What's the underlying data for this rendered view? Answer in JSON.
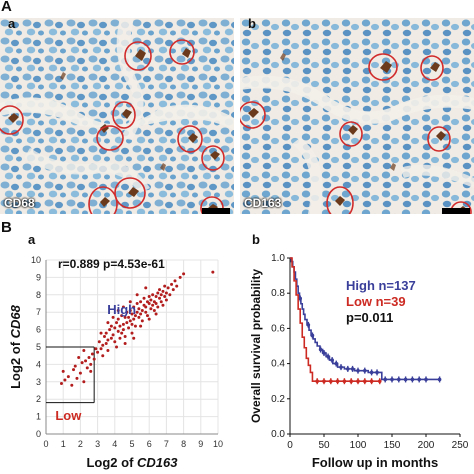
{
  "panel_A": {
    "label": "A",
    "sub_a": {
      "label": "a",
      "stain": "CD68"
    },
    "sub_b": {
      "label": "b",
      "stain": "CD163"
    }
  },
  "panel_B": {
    "label": "B",
    "sub_a": {
      "label": "a"
    },
    "sub_b": {
      "label": "b"
    }
  },
  "colors": {
    "high": "#3a3f9a",
    "low": "#cc2a22",
    "circle": "#d12b2b",
    "scatter": "#b31d1d"
  },
  "chart_data": [
    {
      "type": "scatter",
      "title": "r=0.889 p=4.53e-61",
      "xlabel_prefix": "Log2 of ",
      "xlabel_gene": "CD163",
      "ylabel_prefix": "Log2 of ",
      "ylabel_gene": "CD68",
      "xlim": [
        0,
        10
      ],
      "ylim": [
        0,
        10
      ],
      "xticks": [
        "0",
        "1",
        "2",
        "3",
        "4",
        "5",
        "6",
        "7",
        "8",
        "9",
        "10"
      ],
      "yticks": [
        "0",
        "1",
        "2",
        "3",
        "4",
        "5",
        "6",
        "7",
        "8",
        "9",
        "10"
      ],
      "grid": true,
      "annotations": {
        "high": "High",
        "low": "Low"
      },
      "cutoffs": {
        "x": 2.8,
        "y": 5.0,
        "low_box_y_min": 1.8
      },
      "points": [
        [
          0.9,
          2.9
        ],
        [
          1.1,
          3.1
        ],
        [
          1.3,
          3.3
        ],
        [
          1.0,
          3.6
        ],
        [
          1.5,
          2.8
        ],
        [
          1.6,
          3.7
        ],
        [
          1.8,
          3.2
        ],
        [
          1.7,
          3.9
        ],
        [
          2.0,
          3.5
        ],
        [
          2.1,
          4.1
        ],
        [
          2.2,
          3.0
        ],
        [
          2.3,
          4.2
        ],
        [
          2.4,
          3.8
        ],
        [
          2.5,
          4.4
        ],
        [
          2.6,
          4.0
        ],
        [
          2.7,
          4.6
        ],
        [
          2.2,
          4.8
        ],
        [
          1.9,
          4.4
        ],
        [
          2.8,
          4.3
        ],
        [
          2.6,
          3.6
        ],
        [
          2.9,
          4.9
        ],
        [
          3.0,
          4.7
        ],
        [
          3.1,
          5.3
        ],
        [
          3.2,
          4.9
        ],
        [
          3.3,
          5.1
        ],
        [
          3.4,
          5.6
        ],
        [
          3.5,
          5.2
        ],
        [
          3.5,
          5.8
        ],
        [
          3.6,
          5.4
        ],
        [
          3.7,
          6.0
        ],
        [
          3.8,
          5.5
        ],
        [
          3.8,
          6.2
        ],
        [
          3.9,
          5.7
        ],
        [
          4.0,
          6.1
        ],
        [
          4.0,
          5.3
        ],
        [
          4.1,
          6.4
        ],
        [
          4.2,
          5.9
        ],
        [
          4.2,
          6.6
        ],
        [
          4.3,
          6.2
        ],
        [
          4.4,
          5.8
        ],
        [
          4.4,
          6.8
        ],
        [
          4.5,
          6.3
        ],
        [
          4.5,
          6.0
        ],
        [
          4.6,
          6.7
        ],
        [
          4.6,
          5.6
        ],
        [
          4.7,
          6.4
        ],
        [
          4.7,
          7.0
        ],
        [
          4.8,
          6.1
        ],
        [
          4.8,
          6.7
        ],
        [
          4.9,
          6.5
        ],
        [
          4.9,
          7.1
        ],
        [
          5.0,
          6.3
        ],
        [
          5.0,
          6.9
        ],
        [
          5.1,
          6.6
        ],
        [
          5.1,
          7.3
        ],
        [
          5.2,
          6.8
        ],
        [
          5.2,
          6.2
        ],
        [
          5.3,
          7.0
        ],
        [
          5.3,
          7.5
        ],
        [
          5.4,
          6.7
        ],
        [
          5.4,
          7.2
        ],
        [
          5.5,
          6.9
        ],
        [
          5.5,
          7.6
        ],
        [
          5.6,
          7.1
        ],
        [
          5.6,
          6.5
        ],
        [
          5.7,
          7.4
        ],
        [
          5.7,
          7.8
        ],
        [
          5.8,
          7.0
        ],
        [
          5.8,
          7.3
        ],
        [
          5.9,
          7.6
        ],
        [
          5.9,
          6.8
        ],
        [
          6.0,
          7.5
        ],
        [
          6.0,
          7.9
        ],
        [
          6.1,
          7.2
        ],
        [
          6.1,
          7.7
        ],
        [
          6.2,
          7.4
        ],
        [
          6.2,
          8.0
        ],
        [
          6.3,
          7.6
        ],
        [
          6.3,
          7.1
        ],
        [
          6.4,
          7.9
        ],
        [
          6.4,
          7.5
        ],
        [
          6.5,
          8.1
        ],
        [
          6.5,
          7.3
        ],
        [
          6.6,
          7.8
        ],
        [
          6.6,
          8.3
        ],
        [
          6.7,
          7.6
        ],
        [
          6.7,
          8.0
        ],
        [
          6.8,
          7.4
        ],
        [
          6.8,
          8.2
        ],
        [
          6.9,
          7.9
        ],
        [
          6.9,
          8.5
        ],
        [
          7.0,
          8.1
        ],
        [
          7.0,
          7.7
        ],
        [
          7.1,
          8.4
        ],
        [
          7.2,
          8.0
        ],
        [
          7.3,
          8.6
        ],
        [
          7.4,
          8.3
        ],
        [
          7.5,
          8.8
        ],
        [
          7.6,
          8.5
        ],
        [
          7.8,
          9.0
        ],
        [
          8.0,
          9.2
        ],
        [
          9.7,
          9.3
        ],
        [
          3.3,
          4.5
        ],
        [
          3.6,
          4.8
        ],
        [
          4.1,
          5.0
        ],
        [
          4.3,
          5.5
        ],
        [
          4.6,
          5.2
        ],
        [
          5.0,
          5.8
        ],
        [
          5.5,
          6.2
        ],
        [
          6.0,
          6.6
        ],
        [
          6.4,
          6.9
        ],
        [
          4.9,
          7.6
        ],
        [
          5.3,
          8.0
        ],
        [
          4.5,
          7.3
        ],
        [
          5.8,
          8.4
        ],
        [
          3.9,
          6.7
        ],
        [
          4.2,
          7.1
        ],
        [
          5.1,
          5.5
        ],
        [
          3.2,
          5.8
        ],
        [
          3.6,
          6.4
        ]
      ]
    },
    {
      "type": "line",
      "title": "",
      "xlabel": "Follow up in months",
      "ylabel": "Overall survival probability",
      "xlim": [
        0,
        250
      ],
      "ylim": [
        0,
        1.0
      ],
      "xticks": [
        "0",
        "50",
        "100",
        "150",
        "200",
        "250"
      ],
      "yticks": [
        "0.0",
        "0.2",
        "0.4",
        "0.6",
        "0.8",
        "1.0"
      ],
      "legend": [
        "High n=137",
        "Low n=39"
      ],
      "pvalue": "p=0.011",
      "series": [
        {
          "name": "High n=137",
          "color_key": "high",
          "steps": [
            [
              0,
              1.0
            ],
            [
              2,
              0.98
            ],
            [
              4,
              0.95
            ],
            [
              6,
              0.92
            ],
            [
              8,
              0.88
            ],
            [
              10,
              0.84
            ],
            [
              12,
              0.8
            ],
            [
              14,
              0.77
            ],
            [
              16,
              0.74
            ],
            [
              18,
              0.71
            ],
            [
              20,
              0.68
            ],
            [
              22,
              0.65
            ],
            [
              25,
              0.62
            ],
            [
              28,
              0.59
            ],
            [
              31,
              0.56
            ],
            [
              34,
              0.54
            ],
            [
              37,
              0.52
            ],
            [
              40,
              0.5
            ],
            [
              44,
              0.48
            ],
            [
              48,
              0.46
            ],
            [
              53,
              0.44
            ],
            [
              58,
              0.42
            ],
            [
              63,
              0.4
            ],
            [
              70,
              0.38
            ],
            [
              80,
              0.37
            ],
            [
              95,
              0.36
            ],
            [
              115,
              0.35
            ],
            [
              135,
              0.31
            ],
            [
              220,
              0.31
            ]
          ],
          "censors": [
            15,
            27,
            33,
            45,
            50,
            56,
            62,
            68,
            75,
            85,
            92,
            100,
            110,
            120,
            128,
            140,
            150,
            160,
            170,
            180,
            190,
            200,
            220
          ]
        },
        {
          "name": "Low n=39",
          "color_key": "low",
          "steps": [
            [
              0,
              1.0
            ],
            [
              3,
              0.95
            ],
            [
              6,
              0.87
            ],
            [
              9,
              0.79
            ],
            [
              12,
              0.71
            ],
            [
              15,
              0.63
            ],
            [
              18,
              0.55
            ],
            [
              21,
              0.49
            ],
            [
              24,
              0.43
            ],
            [
              27,
              0.39
            ],
            [
              30,
              0.35
            ],
            [
              33,
              0.3
            ],
            [
              132,
              0.3
            ]
          ],
          "censors": [
            40,
            50,
            60,
            70,
            80,
            90,
            100,
            110,
            120,
            132
          ]
        }
      ]
    }
  ]
}
